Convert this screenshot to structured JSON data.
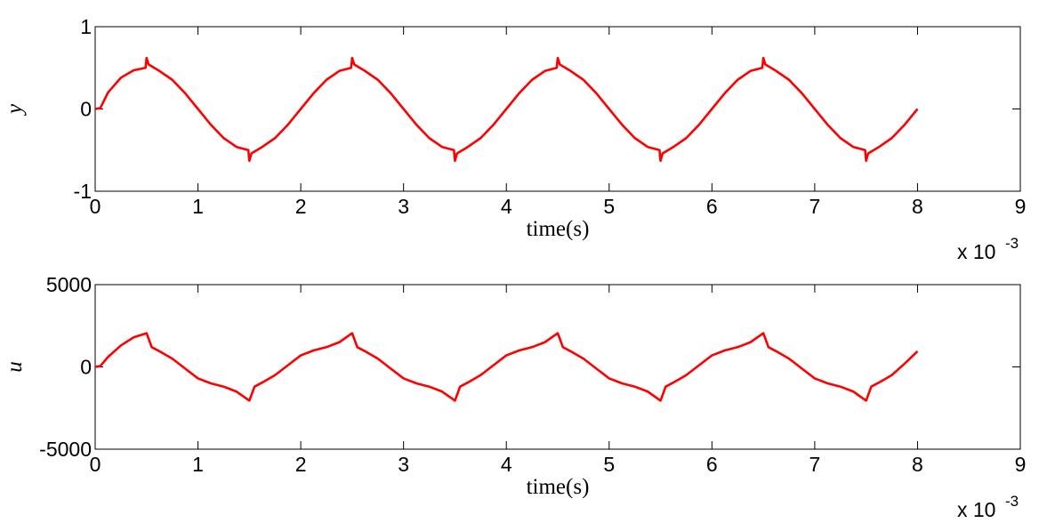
{
  "chart_data": [
    {
      "type": "line",
      "ylabel": "y",
      "xlabel": "time(s)",
      "x_multiplier": "x 10",
      "x_exponent": "-3",
      "xlim": [
        0,
        9
      ],
      "xticks": [
        0,
        1,
        2,
        3,
        4,
        5,
        6,
        7,
        8,
        9
      ],
      "ylim": [
        -1,
        1
      ],
      "yticks": [
        -1,
        0,
        1
      ],
      "x": [
        0,
        0.05,
        0.125,
        0.25,
        0.375,
        0.49,
        0.5,
        0.52,
        0.625,
        0.75,
        0.875,
        1,
        1.125,
        1.25,
        1.375,
        1.49,
        1.5,
        1.52,
        1.625,
        1.75,
        1.875,
        2,
        2.125,
        2.25,
        2.375,
        2.49,
        2.5,
        2.52,
        2.625,
        2.75,
        2.875,
        3,
        3.125,
        3.25,
        3.375,
        3.49,
        3.5,
        3.52,
        3.625,
        3.75,
        3.875,
        4,
        4.125,
        4.25,
        4.375,
        4.49,
        4.5,
        4.52,
        4.625,
        4.75,
        4.875,
        5,
        5.125,
        5.25,
        5.375,
        5.49,
        5.5,
        5.52,
        5.625,
        5.75,
        5.875,
        6,
        6.125,
        6.25,
        6.375,
        6.49,
        6.5,
        6.52,
        6.625,
        6.75,
        6.875,
        7,
        7.125,
        7.25,
        7.375,
        7.49,
        7.5,
        7.52,
        7.625,
        7.75,
        7.875,
        8
      ],
      "series": [
        {
          "color": "#ff0000",
          "values": [
            0,
            0.01,
            0.2,
            0.38,
            0.47,
            0.5,
            0.62,
            0.54,
            0.462,
            0.354,
            0.191,
            0,
            -0.191,
            -0.354,
            -0.462,
            -0.5,
            -0.63,
            -0.54,
            -0.462,
            -0.354,
            -0.191,
            0,
            0.191,
            0.354,
            0.462,
            0.5,
            0.62,
            0.54,
            0.462,
            0.354,
            0.191,
            0,
            -0.191,
            -0.354,
            -0.462,
            -0.5,
            -0.63,
            -0.54,
            -0.462,
            -0.354,
            -0.191,
            0,
            0.191,
            0.354,
            0.462,
            0.5,
            0.62,
            0.54,
            0.462,
            0.354,
            0.191,
            0,
            -0.191,
            -0.354,
            -0.462,
            -0.5,
            -0.63,
            -0.54,
            -0.462,
            -0.354,
            -0.191,
            0,
            0.191,
            0.354,
            0.462,
            0.5,
            0.62,
            0.54,
            0.462,
            0.354,
            0.191,
            0,
            -0.191,
            -0.354,
            -0.462,
            -0.5,
            -0.63,
            -0.54,
            -0.462,
            -0.354,
            -0.191,
            0
          ]
        }
      ]
    },
    {
      "type": "line",
      "ylabel": "u",
      "xlabel": "time(s)",
      "x_multiplier": "x 10",
      "x_exponent": "-3",
      "xlim": [
        0,
        9
      ],
      "xticks": [
        0,
        1,
        2,
        3,
        4,
        5,
        6,
        7,
        8,
        9
      ],
      "ylim": [
        -5000,
        5000
      ],
      "yticks": [
        -5000,
        0,
        5000
      ],
      "x": [
        0,
        0.05,
        0.125,
        0.25,
        0.375,
        0.5,
        0.55,
        0.625,
        0.75,
        0.875,
        1,
        1.125,
        1.25,
        1.375,
        1.5,
        1.55,
        1.625,
        1.75,
        1.875,
        2,
        2.125,
        2.25,
        2.375,
        2.5,
        2.55,
        2.625,
        2.75,
        2.875,
        3,
        3.125,
        3.25,
        3.375,
        3.5,
        3.55,
        3.625,
        3.75,
        3.875,
        4,
        4.125,
        4.25,
        4.375,
        4.5,
        4.55,
        4.625,
        4.75,
        4.875,
        5,
        5.125,
        5.25,
        5.375,
        5.5,
        5.55,
        5.625,
        5.75,
        5.875,
        6,
        6.125,
        6.25,
        6.375,
        6.5,
        6.55,
        6.625,
        6.75,
        6.875,
        7,
        7.125,
        7.25,
        7.375,
        7.5,
        7.55,
        7.625,
        7.75,
        7.875,
        8
      ],
      "series": [
        {
          "color": "#ff0000",
          "values": [
            0,
            50,
            600,
            1300,
            1800,
            2050,
            1200,
            950,
            500,
            -100,
            -700,
            -1000,
            -1200,
            -1500,
            -2050,
            -1200,
            -950,
            -500,
            100,
            700,
            1000,
            1200,
            1500,
            2050,
            1200,
            950,
            500,
            -100,
            -700,
            -1000,
            -1200,
            -1500,
            -2050,
            -1200,
            -950,
            -500,
            100,
            700,
            1000,
            1200,
            1500,
            2050,
            1200,
            950,
            500,
            -100,
            -700,
            -1000,
            -1200,
            -1500,
            -2050,
            -1200,
            -950,
            -500,
            100,
            700,
            1000,
            1200,
            1500,
            2050,
            1200,
            950,
            500,
            -100,
            -700,
            -1000,
            -1200,
            -1500,
            -2050,
            -1200,
            -950,
            -500,
            200,
            950
          ]
        }
      ]
    }
  ]
}
